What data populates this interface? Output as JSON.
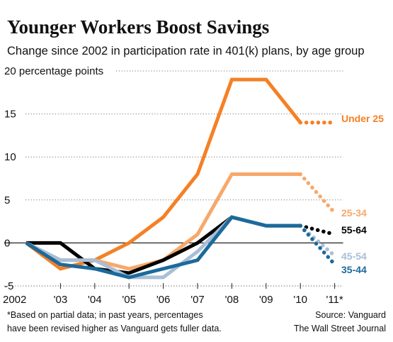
{
  "chart_data": {
    "type": "line",
    "title": "Younger Workers Boost Savings",
    "subtitle": "Change since 2002 in participation rate in 401(k) plans, by age group",
    "ylabel_unit": "percentage points",
    "ylim": [
      -5,
      20
    ],
    "y_ticks": [
      20,
      15,
      10,
      5,
      0,
      -5
    ],
    "y_tick_labels": [
      "20 percentage points",
      "15",
      "10",
      "5",
      "0",
      "-5"
    ],
    "x": [
      2002,
      2003,
      2004,
      2005,
      2006,
      2007,
      2008,
      2009,
      2010,
      2011
    ],
    "x_tick_labels": [
      "2002",
      "'03",
      "'04",
      "'05",
      "'06",
      "'07",
      "'08",
      "'09",
      "'10",
      "'11*"
    ],
    "grid": true,
    "partial_data_from": 2010,
    "series": [
      {
        "name": "Under 25",
        "color": "#f58025",
        "values": [
          0,
          -3,
          -2,
          0,
          3,
          8,
          19,
          19,
          14,
          14
        ]
      },
      {
        "name": "25-34",
        "color": "#f7a86a",
        "values": [
          0,
          -2,
          -2,
          -3,
          -2,
          1,
          8,
          8,
          8,
          3.5
        ]
      },
      {
        "name": "55-64",
        "color": "#000000",
        "values": [
          0,
          0,
          -3,
          -3.5,
          -2,
          0,
          3,
          2,
          2,
          1
        ]
      },
      {
        "name": "45-54",
        "color": "#a9bfd6",
        "values": [
          0,
          -2,
          -2,
          -4,
          -4,
          -1,
          3,
          2,
          2,
          -1.5
        ]
      },
      {
        "name": "35-44",
        "color": "#1b6a9c",
        "values": [
          0,
          -2.5,
          -3,
          -4,
          -3,
          -2,
          3,
          2,
          2,
          -2.5
        ]
      }
    ]
  },
  "footnote": {
    "line1": "*Based on partial data; in past years, percentages",
    "line2": "have been revised higher as Vanguard gets fuller data."
  },
  "source": {
    "line1": "Source: Vanguard",
    "line2": "The Wall Street Journal"
  }
}
